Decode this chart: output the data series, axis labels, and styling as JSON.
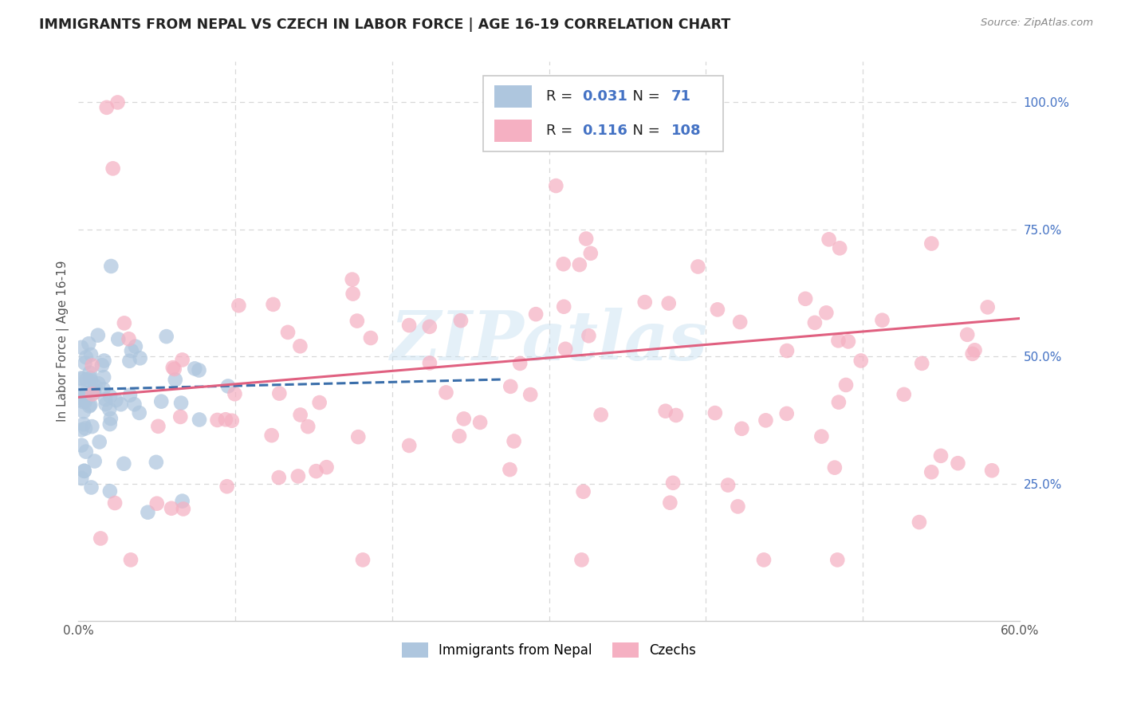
{
  "title": "IMMIGRANTS FROM NEPAL VS CZECH IN LABOR FORCE | AGE 16-19 CORRELATION CHART",
  "source": "Source: ZipAtlas.com",
  "ylabel": "In Labor Force | Age 16-19",
  "xlim": [
    0.0,
    0.6
  ],
  "ylim": [
    -0.02,
    1.08
  ],
  "nepal_R": 0.031,
  "nepal_N": 71,
  "czech_R": 0.116,
  "czech_N": 108,
  "nepal_color": "#aec6de",
  "czech_color": "#f5b0c2",
  "nepal_line_color": "#3a6eaa",
  "czech_line_color": "#e06080",
  "watermark": "ZIPatlas",
  "background_color": "#ffffff",
  "grid_color": "#d8d8d8",
  "nepal_seed": 42,
  "czech_seed": 99,
  "nepal_line_x0": 0.0,
  "nepal_line_x1": 0.27,
  "nepal_line_y0": 0.435,
  "nepal_line_y1": 0.455,
  "czech_line_x0": 0.0,
  "czech_line_x1": 0.6,
  "czech_line_y0": 0.42,
  "czech_line_y1": 0.575
}
